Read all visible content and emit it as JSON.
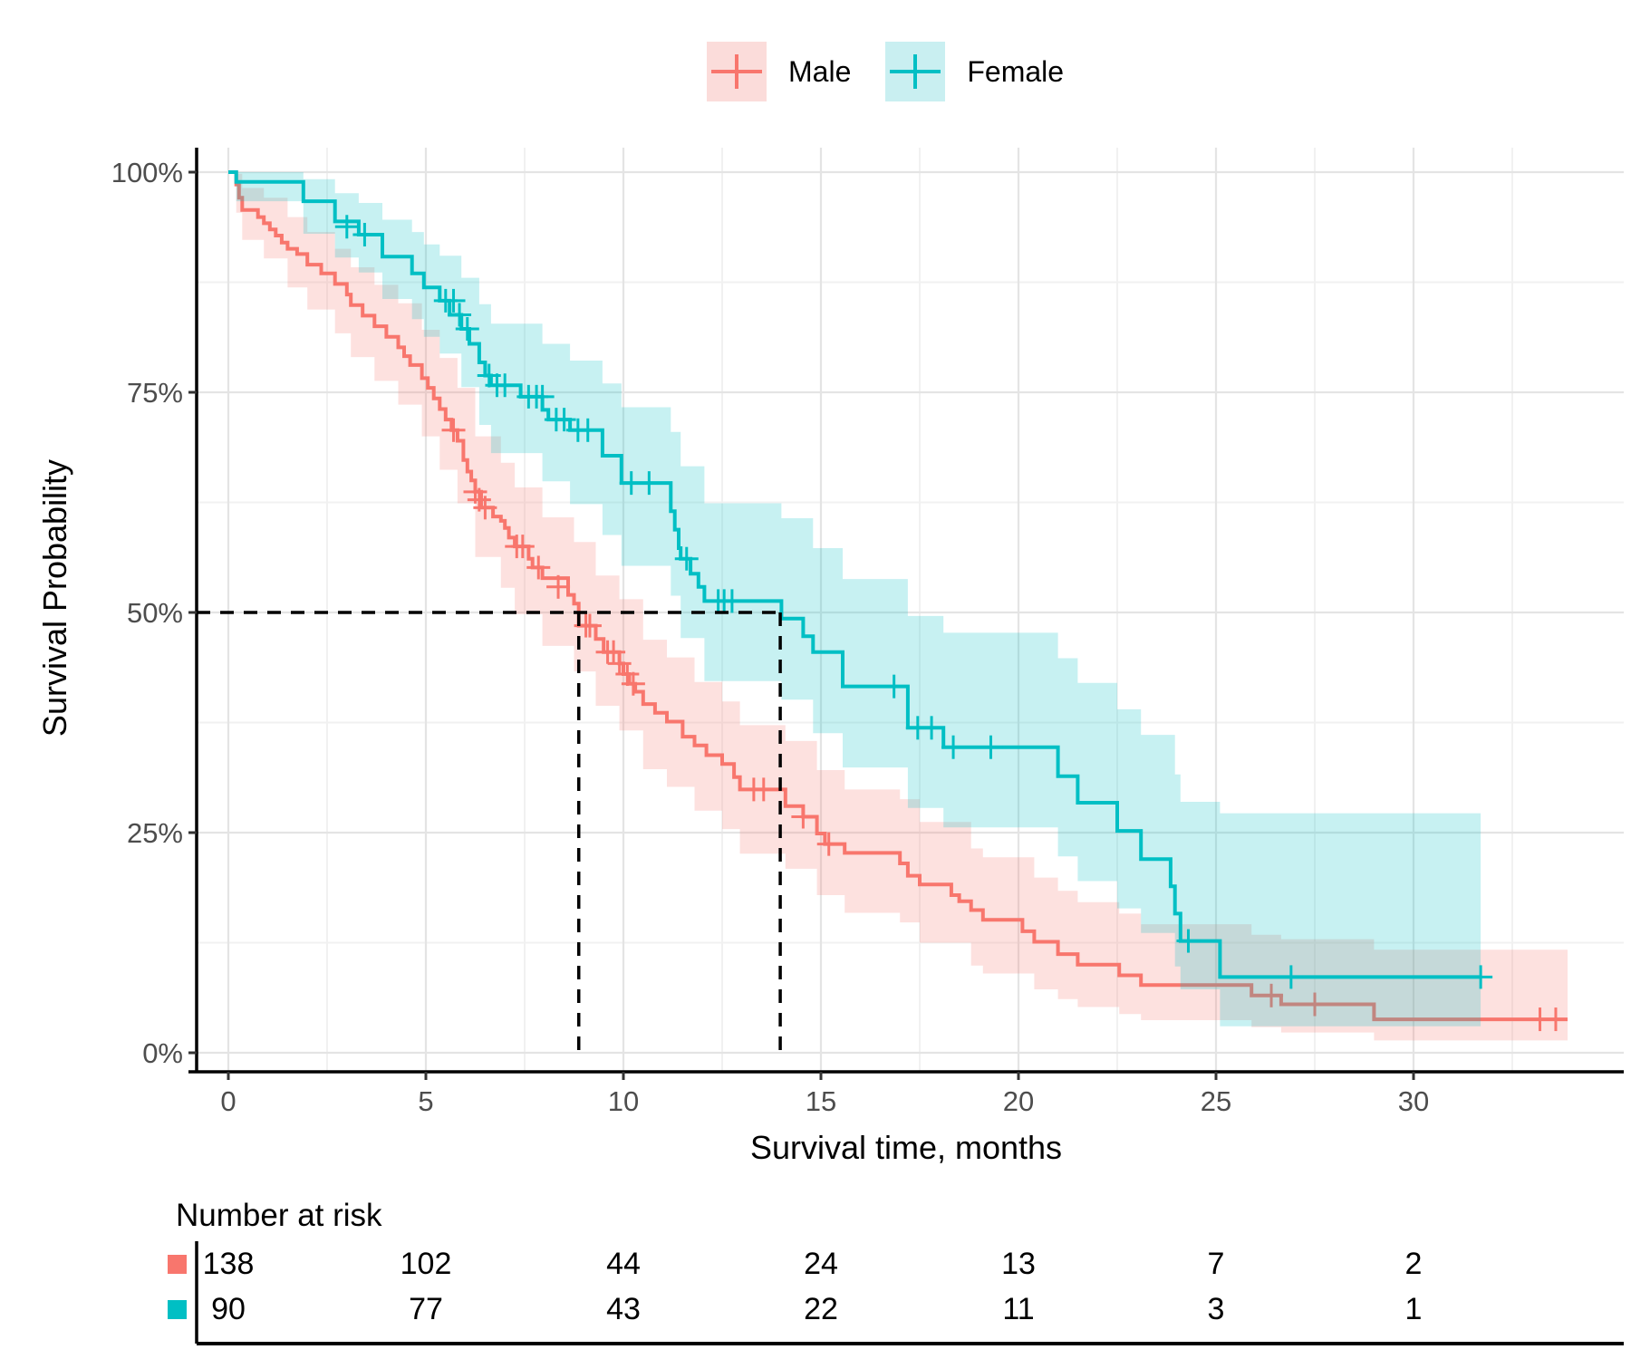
{
  "legend": {
    "items": [
      {
        "label": "Male",
        "color": "#F8766D",
        "key_fill": "#FBDCDA"
      },
      {
        "label": "Female",
        "color": "#00BFC4",
        "key_fill": "#C9EFF1"
      }
    ]
  },
  "axes": {
    "y_title": "Survival Probability",
    "x_title": "Survival time, months",
    "x_tick_labels": [
      "0",
      "5",
      "10",
      "15",
      "20",
      "25",
      "30"
    ],
    "y_tick_labels": [
      "100%",
      "75%",
      "50%",
      "25%",
      "0%"
    ]
  },
  "risk_table": {
    "title": "Number at risk",
    "rows": [
      {
        "group": "Male",
        "color": "#F8766D",
        "counts": [
          "138",
          "102",
          "44",
          "24",
          "13",
          "7",
          "2"
        ]
      },
      {
        "group": "Female",
        "color": "#00BFC4",
        "counts": [
          "90",
          "77",
          "43",
          "22",
          "11",
          "3",
          "1"
        ]
      }
    ]
  },
  "chart_data": {
    "type": "line",
    "subtype": "kaplan-meier-step",
    "title": "",
    "xlabel": "Survival time, months",
    "ylabel": "Survival Probability",
    "xlim": [
      0,
      35.3
    ],
    "ylim": [
      0,
      100
    ],
    "grid": "on",
    "legend_position": "top-center",
    "x_major_ticks": [
      0,
      5,
      10,
      15,
      20,
      25,
      30
    ],
    "x_minor_ticks": [
      2.5,
      7.5,
      12.5,
      17.5,
      22.5,
      27.5,
      32.5
    ],
    "y_major_ticks": [
      0,
      25,
      50,
      75,
      100
    ],
    "y_minor_ticks": [
      12.5,
      37.5,
      62.5,
      87.5
    ],
    "median_lines": {
      "y": 50,
      "x_values": [
        8.87,
        13.97
      ]
    },
    "series": [
      {
        "name": "Male",
        "color": "#F8766D",
        "band_fill": "rgba(248,118,109,0.22)",
        "steps": [
          [
            0,
            100
          ],
          [
            0.2,
            98.6
          ],
          [
            0.27,
            97.1
          ],
          [
            0.35,
            95.7
          ],
          [
            0.75,
            94.9
          ],
          [
            0.9,
            94.2
          ],
          [
            1.05,
            93.5
          ],
          [
            1.2,
            92.8
          ],
          [
            1.35,
            92.0
          ],
          [
            1.5,
            91.3
          ],
          [
            1.74,
            90.7
          ],
          [
            2.0,
            89.5
          ],
          [
            2.35,
            88.5
          ],
          [
            2.7,
            87.3
          ],
          [
            3.0,
            86.1
          ],
          [
            3.1,
            84.9
          ],
          [
            3.4,
            83.7
          ],
          [
            3.7,
            82.5
          ],
          [
            4.0,
            81.3
          ],
          [
            4.3,
            80.1
          ],
          [
            4.45,
            79.1
          ],
          [
            4.6,
            78.1
          ],
          [
            4.9,
            76.6
          ],
          [
            5.05,
            75.5
          ],
          [
            5.2,
            74.3
          ],
          [
            5.35,
            73.1
          ],
          [
            5.5,
            71.9
          ],
          [
            5.65,
            70.7
          ],
          [
            5.8,
            69.5
          ],
          [
            5.95,
            67.3
          ],
          [
            6.05,
            66.0
          ],
          [
            6.15,
            65.0
          ],
          [
            6.25,
            63.7
          ],
          [
            6.4,
            61.9
          ],
          [
            6.7,
            60.9
          ],
          [
            6.9,
            60.4
          ],
          [
            7.0,
            59.6
          ],
          [
            7.1,
            58.5
          ],
          [
            7.25,
            57.5
          ],
          [
            7.6,
            56.1
          ],
          [
            7.7,
            55.1
          ],
          [
            7.95,
            53.9
          ],
          [
            8.6,
            52.0
          ],
          [
            8.75,
            51.0
          ],
          [
            8.87,
            48.5
          ],
          [
            9.3,
            47.0
          ],
          [
            9.5,
            45.5
          ],
          [
            9.9,
            44.2
          ],
          [
            10.0,
            43.0
          ],
          [
            10.15,
            41.9
          ],
          [
            10.3,
            41.0
          ],
          [
            10.5,
            39.6
          ],
          [
            10.8,
            38.6
          ],
          [
            11.1,
            37.6
          ],
          [
            11.5,
            35.9
          ],
          [
            11.8,
            34.9
          ],
          [
            12.1,
            33.8
          ],
          [
            12.5,
            32.8
          ],
          [
            12.8,
            31.3
          ],
          [
            12.95,
            29.9
          ],
          [
            14.1,
            28.0
          ],
          [
            14.55,
            26.8
          ],
          [
            14.9,
            24.9
          ],
          [
            15.1,
            23.7
          ],
          [
            15.6,
            22.7
          ],
          [
            17.0,
            21.5
          ],
          [
            17.2,
            20.1
          ],
          [
            17.5,
            19.1
          ],
          [
            18.3,
            17.9
          ],
          [
            18.5,
            17.2
          ],
          [
            18.8,
            16.2
          ],
          [
            19.1,
            15.1
          ],
          [
            20.1,
            13.8
          ],
          [
            20.4,
            12.6
          ],
          [
            21.0,
            11.2
          ],
          [
            21.5,
            10.0
          ],
          [
            22.55,
            8.8
          ],
          [
            23.1,
            7.7
          ],
          [
            25.9,
            6.5
          ],
          [
            26.65,
            5.5
          ],
          [
            29.0,
            3.8
          ],
          [
            33.9,
            3.8
          ]
        ],
        "censors": [
          [
            5.7,
            70.7
          ],
          [
            6.25,
            63.7
          ],
          [
            6.35,
            62.8
          ],
          [
            6.5,
            61.9
          ],
          [
            7.3,
            57.5
          ],
          [
            7.45,
            57.5
          ],
          [
            7.85,
            55.1
          ],
          [
            8.35,
            52.9
          ],
          [
            9.05,
            48.5
          ],
          [
            9.15,
            48.5
          ],
          [
            9.6,
            45.5
          ],
          [
            9.75,
            45.5
          ],
          [
            9.9,
            44.2
          ],
          [
            10.1,
            43.0
          ],
          [
            10.25,
            41.9
          ],
          [
            13.3,
            29.9
          ],
          [
            13.55,
            29.9
          ],
          [
            14.55,
            26.8
          ],
          [
            15.2,
            23.7
          ],
          [
            26.4,
            6.5
          ],
          [
            27.5,
            5.5
          ],
          [
            33.2,
            3.8
          ],
          [
            33.6,
            3.8
          ]
        ],
        "band": [
          [
            0,
            100,
            100
          ],
          [
            0.2,
            95.4,
            99.8
          ],
          [
            0.35,
            92.3,
            98.2
          ],
          [
            0.9,
            90.2,
            97.1
          ],
          [
            1.5,
            86.9,
            94.9
          ],
          [
            2.0,
            84.4,
            93.2
          ],
          [
            2.7,
            81.7,
            91.3
          ],
          [
            3.1,
            79.0,
            89.2
          ],
          [
            3.7,
            76.3,
            87.2
          ],
          [
            4.3,
            73.6,
            85.1
          ],
          [
            4.9,
            70.0,
            82.1
          ],
          [
            5.35,
            66.2,
            78.9
          ],
          [
            5.8,
            62.4,
            75.5
          ],
          [
            6.25,
            56.3,
            70.0
          ],
          [
            6.9,
            52.8,
            67.0
          ],
          [
            7.25,
            49.8,
            64.2
          ],
          [
            7.95,
            46.2,
            60.8
          ],
          [
            8.75,
            43.3,
            58.0
          ],
          [
            9.3,
            39.4,
            54.2
          ],
          [
            9.9,
            36.6,
            51.5
          ],
          [
            10.5,
            32.2,
            46.9
          ],
          [
            11.1,
            30.2,
            44.9
          ],
          [
            11.8,
            27.5,
            42.1
          ],
          [
            12.5,
            25.4,
            39.9
          ],
          [
            12.95,
            22.6,
            37.2
          ],
          [
            14.1,
            20.9,
            35.4
          ],
          [
            14.9,
            17.9,
            32.1
          ],
          [
            15.6,
            15.9,
            29.9
          ],
          [
            17.0,
            14.8,
            28.8
          ],
          [
            17.5,
            12.5,
            26.2
          ],
          [
            18.8,
            9.9,
            23.2
          ],
          [
            19.1,
            9.0,
            22.2
          ],
          [
            20.4,
            7.2,
            19.9
          ],
          [
            21.0,
            6.1,
            18.4
          ],
          [
            21.5,
            5.2,
            17.1
          ],
          [
            22.55,
            4.4,
            15.8
          ],
          [
            23.1,
            3.7,
            14.6
          ],
          [
            25.9,
            2.9,
            13.4
          ],
          [
            26.65,
            2.3,
            12.9
          ],
          [
            29.0,
            1.4,
            11.7
          ],
          [
            33.9,
            1.4,
            11.7
          ]
        ]
      },
      {
        "name": "Female",
        "color": "#00BFC4",
        "band_fill": "rgba(0,191,196,0.22)",
        "steps": [
          [
            0,
            100
          ],
          [
            0.2,
            98.9
          ],
          [
            1.9,
            96.7
          ],
          [
            2.7,
            94.4
          ],
          [
            3.3,
            92.9
          ],
          [
            3.9,
            90.4
          ],
          [
            4.65,
            88.5
          ],
          [
            4.95,
            86.9
          ],
          [
            5.35,
            85.4
          ],
          [
            5.6,
            83.8
          ],
          [
            5.9,
            82.2
          ],
          [
            6.1,
            80.5
          ],
          [
            6.35,
            78.4
          ],
          [
            6.5,
            76.9
          ],
          [
            6.65,
            75.8
          ],
          [
            7.4,
            74.5
          ],
          [
            7.95,
            73.0
          ],
          [
            8.1,
            71.9
          ],
          [
            8.65,
            70.7
          ],
          [
            9.47,
            67.8
          ],
          [
            9.95,
            64.7
          ],
          [
            11.2,
            61.5
          ],
          [
            11.3,
            59.4
          ],
          [
            11.4,
            57.3
          ],
          [
            11.45,
            56.1
          ],
          [
            11.7,
            54.4
          ],
          [
            11.9,
            52.9
          ],
          [
            12.05,
            51.3
          ],
          [
            14.0,
            49.3
          ],
          [
            14.55,
            47.3
          ],
          [
            14.8,
            45.5
          ],
          [
            15.55,
            41.6
          ],
          [
            17.2,
            36.9
          ],
          [
            18.1,
            34.7
          ],
          [
            21.0,
            31.4
          ],
          [
            21.5,
            28.4
          ],
          [
            22.5,
            25.2
          ],
          [
            23.1,
            22.0
          ],
          [
            23.85,
            18.9
          ],
          [
            23.96,
            15.8
          ],
          [
            24.1,
            12.7
          ],
          [
            25.1,
            8.6
          ],
          [
            31.7,
            8.6
          ]
        ],
        "censors": [
          [
            3.0,
            93.8
          ],
          [
            3.45,
            92.9
          ],
          [
            5.5,
            85.4
          ],
          [
            5.7,
            85.4
          ],
          [
            5.85,
            83.8
          ],
          [
            6.05,
            82.2
          ],
          [
            6.6,
            76.9
          ],
          [
            6.8,
            75.8
          ],
          [
            7.0,
            75.8
          ],
          [
            7.6,
            74.5
          ],
          [
            7.8,
            74.5
          ],
          [
            7.95,
            74.5
          ],
          [
            8.3,
            71.9
          ],
          [
            8.5,
            71.9
          ],
          [
            8.85,
            70.7
          ],
          [
            9.1,
            70.7
          ],
          [
            10.2,
            64.7
          ],
          [
            10.65,
            64.7
          ],
          [
            11.6,
            56.1
          ],
          [
            12.4,
            51.3
          ],
          [
            12.55,
            51.3
          ],
          [
            12.75,
            51.3
          ],
          [
            16.85,
            41.6
          ],
          [
            17.45,
            36.9
          ],
          [
            17.8,
            36.9
          ],
          [
            18.35,
            34.7
          ],
          [
            19.3,
            34.7
          ],
          [
            24.3,
            12.7
          ],
          [
            26.9,
            8.6
          ],
          [
            31.7,
            8.6
          ]
        ],
        "band": [
          [
            0,
            100,
            100
          ],
          [
            0.2,
            96.7,
            100
          ],
          [
            1.9,
            93.0,
            99.2
          ],
          [
            2.7,
            90.3,
            97.6
          ],
          [
            3.3,
            88.6,
            96.5
          ],
          [
            3.9,
            85.6,
            94.6
          ],
          [
            4.65,
            83.3,
            93.2
          ],
          [
            4.95,
            81.3,
            91.8
          ],
          [
            5.35,
            79.4,
            90.5
          ],
          [
            5.9,
            75.6,
            88.0
          ],
          [
            6.35,
            71.3,
            85.0
          ],
          [
            6.65,
            68.1,
            82.8
          ],
          [
            7.95,
            64.9,
            80.5
          ],
          [
            8.65,
            62.3,
            78.6
          ],
          [
            9.47,
            58.8,
            76.0
          ],
          [
            9.95,
            55.3,
            73.3
          ],
          [
            11.2,
            51.9,
            70.5
          ],
          [
            11.45,
            47.1,
            66.6
          ],
          [
            12.05,
            42.2,
            62.4
          ],
          [
            14.0,
            40.1,
            60.7
          ],
          [
            14.8,
            36.3,
            57.3
          ],
          [
            15.55,
            32.4,
            53.8
          ],
          [
            17.2,
            27.8,
            49.6
          ],
          [
            18.1,
            25.6,
            47.7
          ],
          [
            21.0,
            22.3,
            44.8
          ],
          [
            21.5,
            19.5,
            42.0
          ],
          [
            22.5,
            16.4,
            39.0
          ],
          [
            23.1,
            13.6,
            36.1
          ],
          [
            23.96,
            9.8,
            31.6
          ],
          [
            24.1,
            7.2,
            28.5
          ],
          [
            25.1,
            3.0,
            27.2
          ],
          [
            31.7,
            3.0,
            27.2
          ]
        ]
      }
    ]
  }
}
